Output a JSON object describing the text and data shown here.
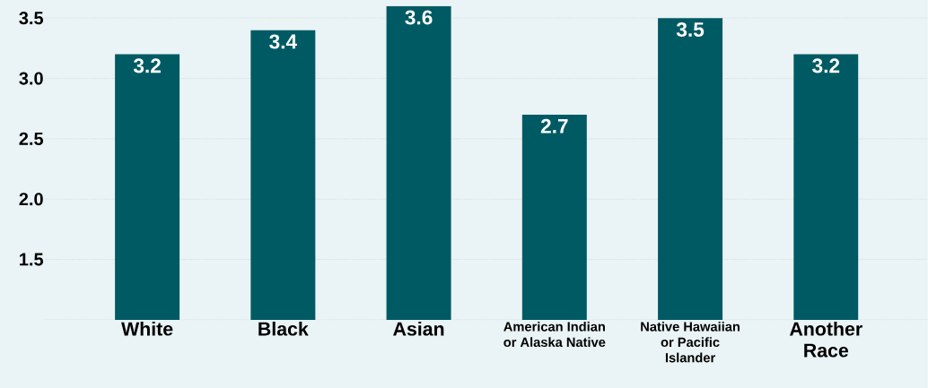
{
  "chart_data": {
    "type": "bar",
    "categories": [
      "White",
      "Black",
      "Asian",
      "American Indian or Alaska Native",
      "Native Hawaiian or Pacific Islander",
      "Another Race"
    ],
    "values": [
      3.2,
      3.4,
      3.6,
      2.7,
      3.5,
      3.2
    ],
    "color": "#005a64",
    "ylim": [
      1.0,
      3.65
    ],
    "yticks": [
      {
        "value": 1.0,
        "label": null
      },
      1.5,
      {
        "value": 2,
        "label": "2.0"
      },
      2.5,
      {
        "value": 3,
        "label": "3.0"
      },
      3.5
    ],
    "grid": "y",
    "data_labels": true
  }
}
